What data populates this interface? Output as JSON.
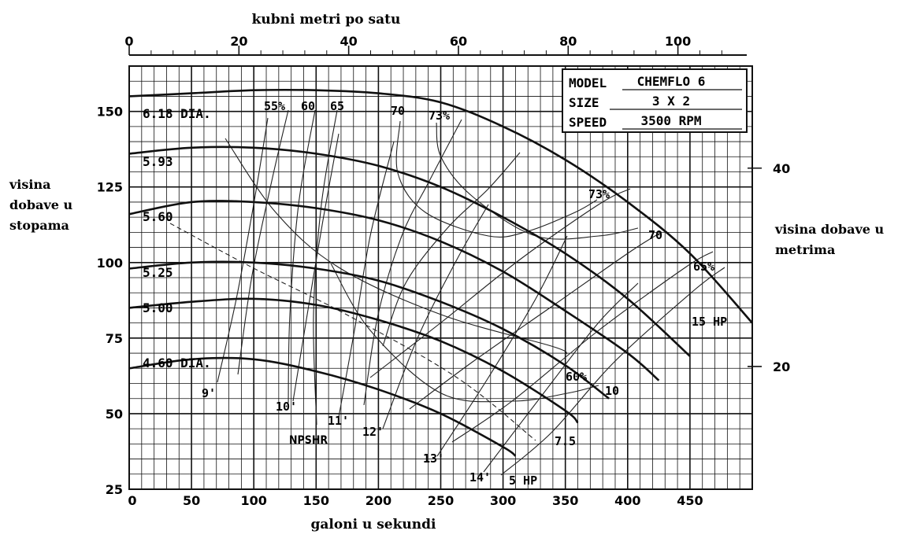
{
  "chart_data": {
    "type": "line",
    "title": "",
    "xlabel": "galoni u sekundi",
    "ylabel": "visina dobave u stopama",
    "ylabel_lines": [
      "visina",
      "dobave u",
      "stopama"
    ],
    "top_xlabel": "kubni metri po satu",
    "right_ylabel": "visina dobave u metrima",
    "right_ylabel_lines": [
      "visina dobave u",
      "metrima"
    ],
    "xlim": [
      0,
      500
    ],
    "ylim": [
      25,
      165
    ],
    "x_ticks": [
      0,
      50,
      100,
      150,
      200,
      250,
      300,
      350,
      400,
      450
    ],
    "y_ticks": [
      25,
      50,
      75,
      100,
      125,
      150
    ],
    "top_ticks": [
      0,
      20,
      40,
      60,
      80,
      100
    ],
    "top_per_bottom": 0.2271,
    "right_ticks": [
      20,
      40
    ],
    "right_per_left": 0.3048,
    "grid": true,
    "info_box": {
      "model_label": "MODEL",
      "model_value": "CHEMFLO 6",
      "size_label": "SIZE",
      "size_value": "3 X 2",
      "speed_label": "SPEED",
      "speed_value": "3500 RPM"
    },
    "series": [
      {
        "name": "6.18 DIA.",
        "x": [
          0,
          50,
          100,
          150,
          200,
          250,
          300,
          350,
          400,
          450,
          500
        ],
        "y": [
          155,
          156,
          157,
          157,
          156,
          153,
          145,
          134,
          120,
          103,
          80
        ]
      },
      {
        "name": "5.93",
        "x": [
          0,
          50,
          100,
          150,
          200,
          250,
          300,
          350,
          400,
          450
        ],
        "y": [
          136,
          138,
          138,
          136,
          132,
          125,
          115,
          103,
          88,
          69
        ]
      },
      {
        "name": "5.60",
        "x": [
          0,
          50,
          100,
          150,
          200,
          250,
          300,
          350,
          400,
          425
        ],
        "y": [
          116,
          120,
          120,
          118,
          114,
          107,
          97,
          84,
          70,
          61
        ]
      },
      {
        "name": "5.25",
        "x": [
          0,
          50,
          100,
          150,
          200,
          250,
          300,
          350,
          385
        ],
        "y": [
          98,
          100,
          100,
          98,
          94,
          87,
          78,
          66,
          55
        ]
      },
      {
        "name": "5.00",
        "x": [
          0,
          50,
          100,
          150,
          200,
          250,
          300,
          350,
          360
        ],
        "y": [
          85,
          87,
          88,
          86,
          81,
          74,
          64,
          51,
          47
        ]
      },
      {
        "name": "4.60 DIA.",
        "x": [
          0,
          50,
          100,
          150,
          200,
          250,
          300,
          310
        ],
        "y": [
          65,
          68,
          68,
          64,
          58,
          50,
          39,
          36
        ]
      }
    ],
    "efficiency_labels": [
      "55%",
      "60",
      "65",
      "70",
      "73%",
      "73%",
      "70",
      "65%",
      "60%"
    ],
    "power_labels": [
      "5 HP",
      "7.5",
      "10",
      "15 HP"
    ],
    "npshr_labels": [
      "9'",
      "10'",
      "11'",
      "12'",
      "13'",
      "14'"
    ],
    "npshr_title": "NPSHR"
  }
}
